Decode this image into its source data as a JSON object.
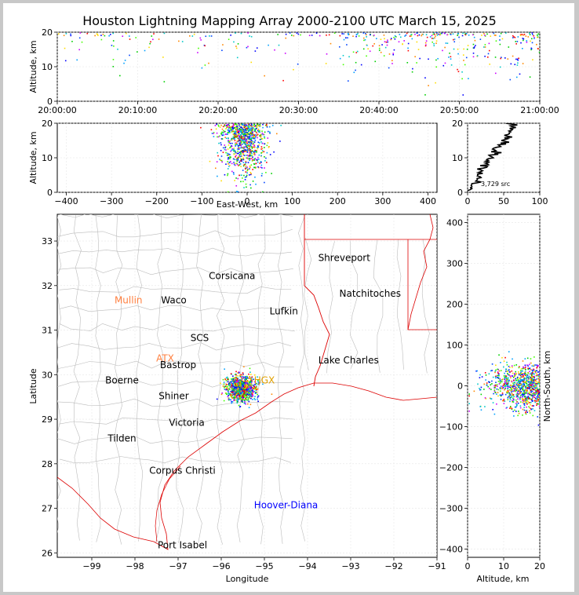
{
  "title": "Houston Lightning Mapping Array 2000-2100 UTC March 15, 2025",
  "colors": {
    "source_palette": [
      "#0000ff",
      "#0044ff",
      "#00a0ff",
      "#00c8c8",
      "#00d000",
      "#44ff00",
      "#ffdd00",
      "#ff8800",
      "#ff0000",
      "#cc00ff",
      "#000000"
    ],
    "state_border": "#dd0000",
    "county_border": "#bbbbbb"
  },
  "chart_data": [
    {
      "type": "scatter",
      "id": "time_altitude",
      "xlabel": "",
      "ylabel": "Altitude, km",
      "xlim_minutes": [
        0,
        60
      ],
      "ylim": [
        0,
        20
      ],
      "x_ticks": [
        "20:00:00",
        "20:10:00",
        "20:20:00",
        "20:30:00",
        "20:40:00",
        "20:50:00",
        "21:00:00"
      ],
      "y_ticks": [
        0,
        10,
        20
      ]
    },
    {
      "type": "scatter",
      "id": "ew_altitude",
      "xlabel": "East-West, km",
      "ylabel": "Altitude, km",
      "xlim": [
        -420,
        420
      ],
      "ylim": [
        0,
        20
      ],
      "x_ticks": [
        -400,
        -300,
        -200,
        -100,
        0,
        100,
        200,
        300,
        400
      ],
      "y_ticks": [
        0,
        10,
        20
      ],
      "cluster_center_km": -10,
      "cluster_spread_km": 25
    },
    {
      "type": "line",
      "id": "altitude_histogram",
      "xlim": [
        0,
        100
      ],
      "ylim": [
        0,
        20
      ],
      "x_ticks": [
        0,
        50,
        100
      ],
      "y_ticks": [
        0,
        10,
        20
      ],
      "label": "3,729 src",
      "profile": [
        [
          2,
          0.5
        ],
        [
          5,
          1
        ],
        [
          8,
          2
        ],
        [
          12,
          3
        ],
        [
          15,
          4
        ],
        [
          18,
          5
        ],
        [
          22,
          6
        ],
        [
          25,
          7
        ],
        [
          28,
          8
        ],
        [
          30,
          9
        ],
        [
          33,
          10
        ],
        [
          36,
          11
        ],
        [
          40,
          12
        ],
        [
          44,
          13
        ],
        [
          48,
          14
        ],
        [
          52,
          15
        ],
        [
          56,
          16
        ],
        [
          60,
          17
        ],
        [
          62,
          18
        ],
        [
          60,
          19
        ],
        [
          55,
          20
        ]
      ]
    },
    {
      "type": "scatter",
      "id": "plan_view",
      "xlabel": "Longitude",
      "ylabel": "Latitude",
      "xlim": [
        -99.8,
        -91.0
      ],
      "ylim": [
        25.9,
        33.6
      ],
      "x_ticks": [
        -99,
        -98,
        -97,
        -96,
        -95,
        -94,
        -93,
        -92,
        -91
      ],
      "y_ticks": [
        26,
        27,
        28,
        29,
        30,
        31,
        32,
        33
      ],
      "cluster_center": [
        -95.55,
        29.7
      ],
      "cluster_spread": [
        0.3,
        0.25
      ],
      "cities": [
        {
          "name": "Shreveport",
          "lon": -93.15,
          "lat": 32.55,
          "color": "#000000"
        },
        {
          "name": "Corsicana",
          "lon": -95.75,
          "lat": 32.15,
          "color": "#000000"
        },
        {
          "name": "Natchitoches",
          "lon": -92.55,
          "lat": 31.75,
          "color": "#000000"
        },
        {
          "name": "Mullin",
          "lon": -98.15,
          "lat": 31.6,
          "color": "#ff8040"
        },
        {
          "name": "Waco",
          "lon": -97.1,
          "lat": 31.6,
          "color": "#000000"
        },
        {
          "name": "Lufkin",
          "lon": -94.55,
          "lat": 31.35,
          "color": "#000000"
        },
        {
          "name": "SCS",
          "lon": -96.5,
          "lat": 30.75,
          "color": "#000000"
        },
        {
          "name": "ATX",
          "lon": -97.3,
          "lat": 30.3,
          "color": "#ff8040"
        },
        {
          "name": "Bastrop",
          "lon": -97.0,
          "lat": 30.15,
          "color": "#000000"
        },
        {
          "name": "Lake Charles",
          "lon": -93.05,
          "lat": 30.25,
          "color": "#000000"
        },
        {
          "name": "Boerne",
          "lon": -98.3,
          "lat": 29.8,
          "color": "#000000"
        },
        {
          "name": "HGX",
          "lon": -95.0,
          "lat": 29.8,
          "color": "#e0a000"
        },
        {
          "name": "Shiner",
          "lon": -97.1,
          "lat": 29.45,
          "color": "#000000"
        },
        {
          "name": "Victoria",
          "lon": -96.8,
          "lat": 28.85,
          "color": "#000000"
        },
        {
          "name": "Tilden",
          "lon": -98.3,
          "lat": 28.5,
          "color": "#000000"
        },
        {
          "name": "Corpus Christi",
          "lon": -96.9,
          "lat": 27.78,
          "color": "#000000"
        },
        {
          "name": "Hoover-Diana",
          "lon": -94.5,
          "lat": 27.0,
          "color": "#0000ff"
        },
        {
          "name": "Port Isabel",
          "lon": -96.9,
          "lat": 26.1,
          "color": "#000000"
        }
      ]
    },
    {
      "type": "scatter",
      "id": "altitude_ns",
      "xlabel": "Altitude, km",
      "ylabel": "North-South, km",
      "xlim": [
        0,
        20
      ],
      "ylim": [
        -420,
        420
      ],
      "x_ticks": [
        0,
        10,
        20
      ],
      "y_ticks": [
        -400,
        -300,
        -200,
        -100,
        0,
        100,
        200,
        300,
        400
      ]
    }
  ]
}
